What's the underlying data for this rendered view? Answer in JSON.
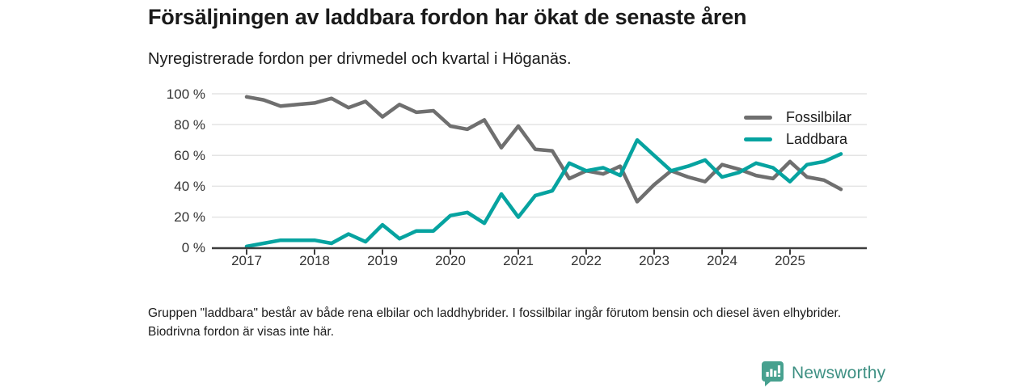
{
  "header": {
    "title": "Försäljningen av laddbara fordon har ökat de senaste åren",
    "subtitle": "Nyregistrerade fordon per drivmedel och kvartal i Höganäs."
  },
  "chart_data": {
    "type": "line",
    "title": "Försäljningen av laddbara fordon har ökat de senaste åren",
    "subtitle": "Nyregistrerade fordon per drivmedel och kvartal i Höganäs.",
    "unit": "%",
    "x_start": "2017 Q1",
    "x_end": "2025 Q4",
    "points_per_year": 4,
    "x_tick_labels": [
      "2017",
      "2018",
      "2019",
      "2020",
      "2021",
      "2022",
      "2023",
      "2024",
      "2025"
    ],
    "y_tick_values": [
      0,
      20,
      40,
      60,
      80,
      100
    ],
    "y_tick_labels": [
      "0 %",
      "20 %",
      "40 %",
      "60 %",
      "80 %",
      "100 %"
    ],
    "ylim": [
      0,
      100
    ],
    "grid": "horizontal",
    "legend_position": "top-right-inside",
    "series": [
      {
        "name": "Fossilbilar",
        "color": "#6F6F6F",
        "values": [
          98,
          96,
          92,
          93,
          94,
          97,
          91,
          95,
          85,
          93,
          88,
          89,
          79,
          77,
          83,
          65,
          79,
          64,
          63,
          45,
          50,
          48,
          53,
          30,
          41,
          50,
          46,
          43,
          54,
          51,
          47,
          45,
          56,
          46,
          44,
          38
        ]
      },
      {
        "name": "Laddbara",
        "color": "#06A3A0",
        "values": [
          1,
          3,
          5,
          5,
          5,
          3,
          9,
          4,
          15,
          6,
          11,
          11,
          21,
          23,
          16,
          35,
          20,
          34,
          37,
          55,
          50,
          52,
          47,
          70,
          60,
          50,
          53,
          57,
          46,
          49,
          55,
          52,
          43,
          54,
          56,
          61
        ]
      }
    ]
  },
  "style": {
    "gridline_color": "#E4E4E4",
    "axis_color": "#3D3D3D",
    "text_color": "#333333"
  },
  "footnote": {
    "text": "Gruppen \"laddbara\" består av både rena elbilar och laddhybrider. I fossilbilar ingår förutom bensin och diesel även elhybrider. Biodrivna fordon är visas inte här."
  },
  "logo": {
    "text": "Newsworthy",
    "icon_color": "#47A18F",
    "text_color": "#3E9083"
  }
}
